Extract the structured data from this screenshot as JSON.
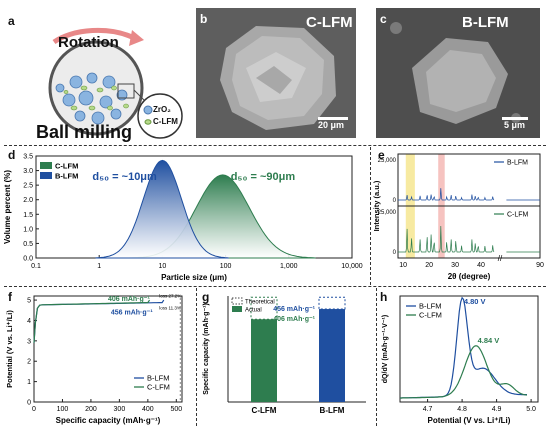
{
  "panels": {
    "a": {
      "letter": "a",
      "rotation_label": "Rotation",
      "title": "Ball milling",
      "legend": [
        "ZrO₂",
        "C-LFM"
      ]
    },
    "b": {
      "letter": "b",
      "title": "C-LFM",
      "scale": "20 μm"
    },
    "c": {
      "letter": "c",
      "title": "B-LFM",
      "scale": "5 μm"
    },
    "d": {
      "letter": "d"
    },
    "e": {
      "letter": "e"
    },
    "f": {
      "letter": "f"
    },
    "g": {
      "letter": "g"
    },
    "h": {
      "letter": "h"
    }
  },
  "colors": {
    "green": "#2e7d4f",
    "blue": "#1f4fa0",
    "yellow": "#f5e58a",
    "pink": "#f4b4b0"
  },
  "chart_data": [
    {
      "id": "d",
      "type": "area",
      "xlabel": "Particle size (μm)",
      "ylabel": "Volume percent (%)",
      "xscale": "log",
      "xlim": [
        0.1,
        10000
      ],
      "ylim": [
        0,
        3.5
      ],
      "xticks": [
        "0.1",
        "1",
        "10",
        "100",
        "1,000",
        "10,000"
      ],
      "yticks": [
        "0.0",
        "0.5",
        "1.0",
        "1.5",
        "2.0",
        "2.5",
        "3.0",
        "3.5"
      ],
      "legend": "top-left",
      "series": [
        {
          "name": "C-LFM",
          "peak_x": 90,
          "peak_y": 2.85,
          "log_sigma": 0.42
        },
        {
          "name": "B-LFM",
          "peak_x": 10,
          "peak_y": 3.35,
          "log_sigma": 0.3
        }
      ],
      "annotations": [
        {
          "text": "d₅₀ = ~10μm",
          "series": "B-LFM"
        },
        {
          "text": "d₅₀ = ~90μm",
          "series": "C-LFM"
        }
      ]
    },
    {
      "id": "e",
      "type": "line",
      "xlabel": "2θ (degree)",
      "ylabel": "Intensity (a.u.)",
      "xticks": [
        "10",
        "20",
        "30",
        "40",
        "90"
      ],
      "yticks_top": [
        "0",
        "25,000"
      ],
      "yticks_bottom": [
        "0",
        "25,000"
      ],
      "series": [
        {
          "name": "B-LFM",
          "peaks": [
            [
              11.5,
              0.12
            ],
            [
              13.2,
              0.08
            ],
            [
              16.5,
              0.1
            ],
            [
              19.2,
              0.12
            ],
            [
              20.8,
              0.14
            ],
            [
              21.9,
              0.1
            ],
            [
              24.5,
              0.28
            ],
            [
              26.8,
              0.08
            ],
            [
              28.5,
              0.12
            ],
            [
              30.3,
              0.1
            ],
            [
              32.5,
              0.06
            ],
            [
              36.5,
              0.13
            ],
            [
              37.8,
              0.1
            ],
            [
              38.9,
              0.08
            ],
            [
              41.5,
              0.06
            ],
            [
              44.5,
              0.08
            ]
          ]
        },
        {
          "name": "C-LFM",
          "peaks": [
            [
              11.5,
              0.55
            ],
            [
              13.2,
              0.35
            ],
            [
              16.5,
              0.3
            ],
            [
              19.2,
              0.38
            ],
            [
              20.8,
              0.45
            ],
            [
              21.9,
              0.3
            ],
            [
              24.5,
              0.62
            ],
            [
              26.8,
              0.25
            ],
            [
              28.5,
              0.3
            ],
            [
              30.3,
              0.28
            ],
            [
              32.5,
              0.15
            ],
            [
              36.5,
              0.3
            ],
            [
              37.8,
              0.22
            ],
            [
              38.9,
              0.18
            ],
            [
              41.5,
              0.14
            ],
            [
              44.5,
              0.16
            ]
          ]
        }
      ]
    },
    {
      "id": "f",
      "type": "line",
      "xlabel": "Specific capacity (mAh·g⁻¹)",
      "ylabel": "Potential (V vs. Li⁺/Li)",
      "xlim": [
        0,
        520
      ],
      "ylim": [
        0,
        5.2
      ],
      "xticks": [
        "0",
        "100",
        "200",
        "300",
        "400",
        "500"
      ],
      "yticks": [
        "0",
        "1",
        "2",
        "3",
        "4",
        "5"
      ],
      "legend": "bottom-right",
      "series": [
        {
          "name": "B-LFM",
          "final_capacity": 456
        },
        {
          "name": "C-LFM",
          "final_capacity": 406
        }
      ],
      "annotations": [
        "406 mAh·g⁻¹",
        "456 mAh·g⁻¹",
        "loss 27.2%",
        "loss 11.3%"
      ]
    },
    {
      "id": "g",
      "type": "bar",
      "categories": [
        "C-LFM",
        "B-LFM"
      ],
      "ylabel": "Specific capacity (mAh·g⁻¹)",
      "ylim": [
        0,
        520
      ],
      "legend": "top-left",
      "series": [
        {
          "name": "Actual",
          "values": [
            406,
            456
          ]
        },
        {
          "name": "Theoretical",
          "values": [
            514,
            514
          ]
        }
      ],
      "annotations": [
        "456 mAh·g⁻¹",
        "406 mAh·g⁻¹"
      ]
    },
    {
      "id": "h",
      "type": "line",
      "xlabel": "Potential (V vs. Li⁺/Li)",
      "ylabel": "dQ/dV (mAh·g⁻¹·V⁻¹)",
      "xlim": [
        4.62,
        5.02
      ],
      "xticks": [
        "4.7",
        "4.8",
        "4.9",
        "5.0"
      ],
      "legend": "top-left",
      "series": [
        {
          "name": "B-LFM",
          "peak": 4.8
        },
        {
          "name": "C-LFM",
          "peak": 4.84
        }
      ],
      "annotations": [
        "4.80 V",
        "4.84 V"
      ]
    }
  ]
}
